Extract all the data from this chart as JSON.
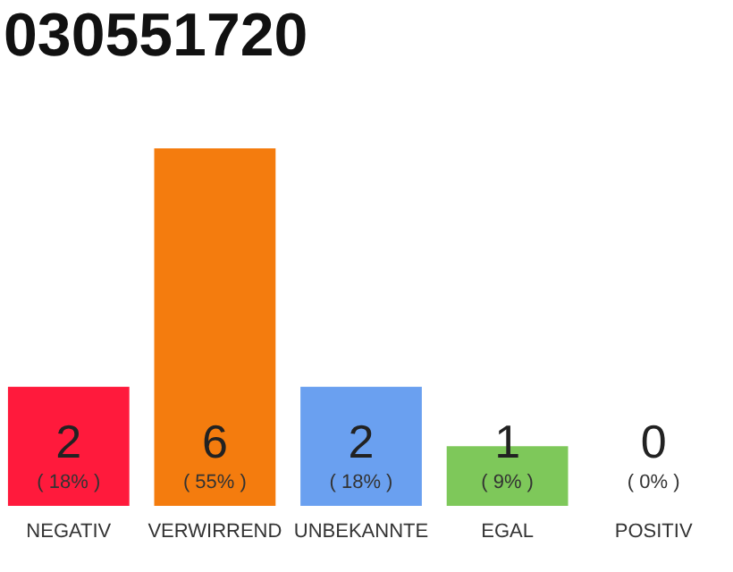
{
  "chart_data": {
    "type": "bar",
    "title": "030551720",
    "categories": [
      "NEGATIV",
      "VERWIRREND",
      "UNBEKANNTE",
      "EGAL",
      "POSITIV"
    ],
    "values": [
      2,
      6,
      2,
      1,
      0
    ],
    "colors": [
      "#ff1a3c",
      "#f47c0e",
      "#6aa0f0",
      "#7ec85a",
      "#cccccc"
    ],
    "data_labels": true,
    "annotations": [
      "( 18% )",
      "( 55% )",
      "( 18% )",
      "( 9% )",
      "( 0% )"
    ],
    "grid": false,
    "legend": false
  }
}
